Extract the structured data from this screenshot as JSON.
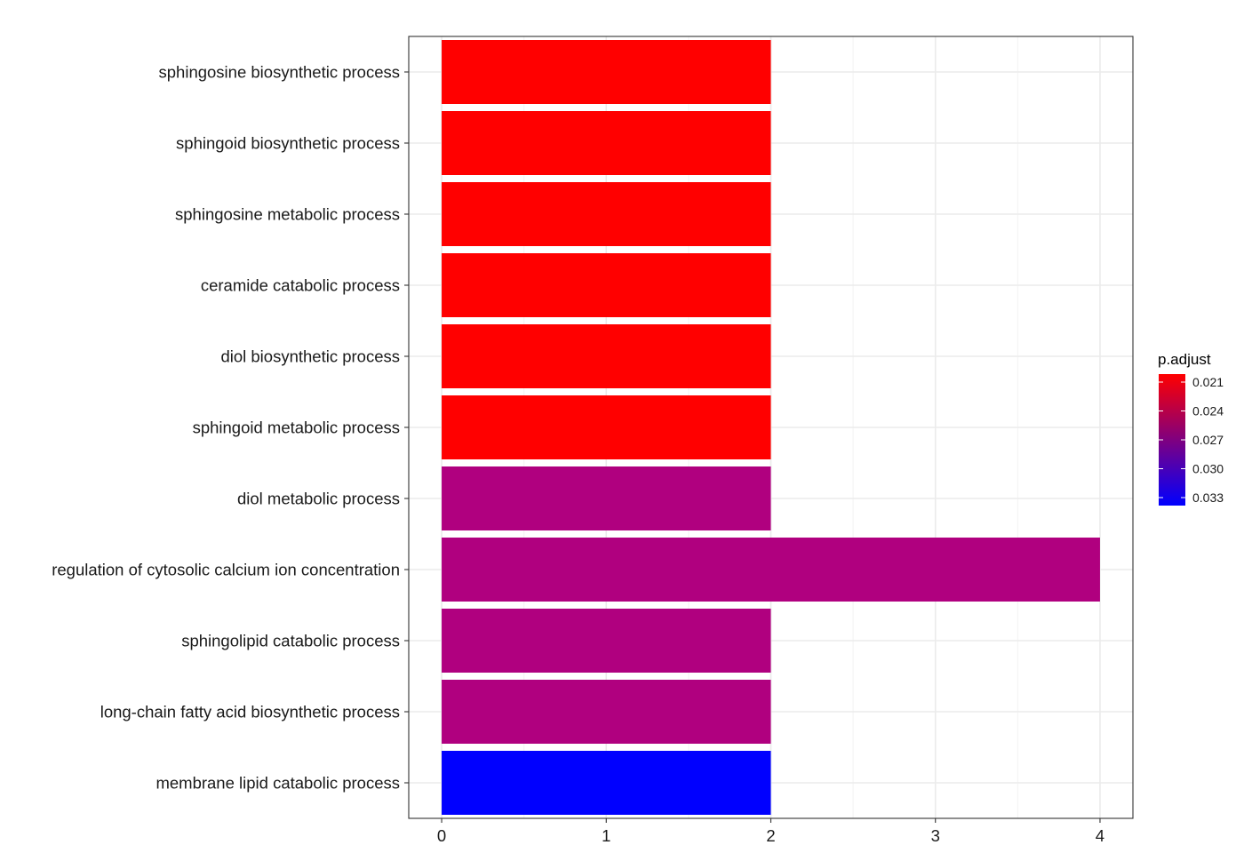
{
  "chart_data": {
    "type": "bar",
    "orientation": "horizontal",
    "categories": [
      "sphingosine biosynthetic process",
      "sphingoid biosynthetic process",
      "sphingosine metabolic process",
      "ceramide catabolic process",
      "diol biosynthetic process",
      "sphingoid metabolic process",
      "diol metabolic process",
      "regulation of cytosolic calcium ion concentration",
      "sphingolipid catabolic process",
      "long-chain fatty acid biosynthetic process",
      "membrane lipid catabolic process"
    ],
    "values": [
      2,
      2,
      2,
      2,
      2,
      2,
      2,
      4,
      2,
      2,
      2
    ],
    "p_adjust": [
      0.0205,
      0.0205,
      0.0205,
      0.0205,
      0.0205,
      0.0205,
      0.0281,
      0.0281,
      0.0281,
      0.0281,
      0.0335
    ],
    "bar_colors": [
      "#ff0000",
      "#ff0000",
      "#ff0000",
      "#ff0000",
      "#ff0000",
      "#ff0000",
      "#b0007f",
      "#b0007f",
      "#b0007f",
      "#b0007f",
      "#0000ff"
    ],
    "xlim": [
      -0.2,
      4.2
    ],
    "x_ticks": [
      "0",
      "1",
      "2",
      "3",
      "4"
    ],
    "grid": true,
    "legend": {
      "title": "p.adjust",
      "position": "right",
      "labels": [
        "0.021",
        "0.024",
        "0.027",
        "0.030",
        "0.033"
      ],
      "color_high": "#ff0000",
      "color_low": "#0000ff"
    }
  }
}
